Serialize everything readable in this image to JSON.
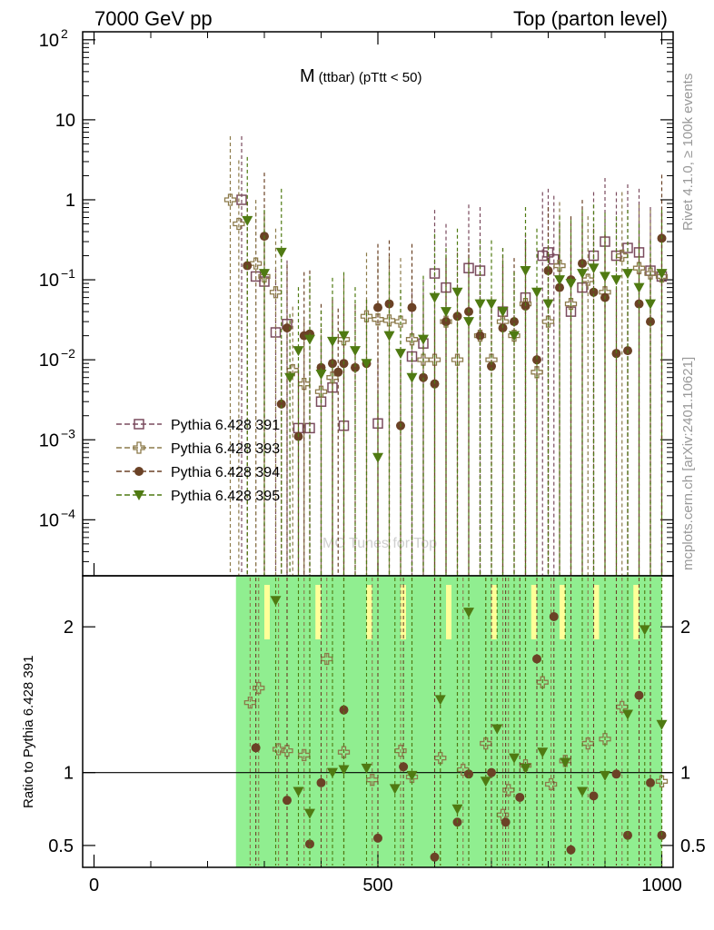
{
  "header": {
    "left_label": "7000 GeV pp",
    "right_label": "Top (parton level)"
  },
  "side": {
    "rivet_label": "Rivet 4.1.0, ≥ 100k events",
    "mcplots_label": "mcplots.cern.ch [arXiv:2401.10621]"
  },
  "watermark": "MC Tunes for Top",
  "colors": {
    "s391": "#7a4b5e",
    "s393": "#8c7a4a",
    "s394": "#6b4226",
    "s395": "#4f7a12",
    "band_green": "#90ee90",
    "band_yellow": "#ffff99"
  },
  "chart_data": {
    "type": "scatter",
    "title_main": "M",
    "title_sub": "(ttbar) (pTtt < 50)",
    "xlabel": "",
    "ylabel_ratio": "Ratio to Pythia 6.428 391",
    "xlim": [
      -20,
      1020
    ],
    "ylim_main_log10": [
      -4.7,
      2.1
    ],
    "ylim_ratio": [
      0.35,
      2.35
    ],
    "x_ticks": [
      0,
      500,
      1000
    ],
    "x_tick_labels": [
      "0",
      "500",
      "1000"
    ],
    "y_main_ticks": [
      {
        "exp": 2,
        "label": "10",
        "sup": "2"
      },
      {
        "exp": 1,
        "label": "10",
        "sup": ""
      },
      {
        "exp": 0,
        "label": "1",
        "sup": ""
      },
      {
        "exp": -1,
        "label": "10",
        "sup": "−1"
      },
      {
        "exp": -2,
        "label": "10",
        "sup": "−2"
      },
      {
        "exp": -3,
        "label": "10",
        "sup": "−3"
      },
      {
        "exp": -4,
        "label": "10",
        "sup": "−4"
      }
    ],
    "y_ratio_ticks": [
      {
        "v": 2,
        "label": "2"
      },
      {
        "v": 1,
        "label": "1"
      },
      {
        "v": 0.5,
        "label": "0.5"
      }
    ],
    "legend": [
      {
        "key": "s391",
        "label": "Pythia 6.428 391",
        "marker": "open-square"
      },
      {
        "key": "s393",
        "label": "Pythia 6.428 393",
        "marker": "open-cross"
      },
      {
        "key": "s394",
        "label": "Pythia 6.428 394",
        "marker": "circle"
      },
      {
        "key": "s395",
        "label": "Pythia 6.428 395",
        "marker": "triangle-down"
      }
    ],
    "series": [
      {
        "key": "s391",
        "x": [
          260,
          285,
          300,
          320,
          340,
          360,
          380,
          400,
          420,
          440,
          500,
          560,
          580,
          600,
          620,
          660,
          680,
          720,
          760,
          790,
          800,
          810,
          840,
          860,
          880,
          900,
          920,
          940,
          960,
          980,
          1000
        ],
        "y": [
          1.0,
          0.11,
          0.095,
          0.022,
          0.028,
          0.0014,
          0.0014,
          0.003,
          0.0045,
          0.0015,
          0.0016,
          0.011,
          0.016,
          0.12,
          0.08,
          0.14,
          0.13,
          0.04,
          0.06,
          0.2,
          0.22,
          0.18,
          0.04,
          0.08,
          0.2,
          0.3,
          0.2,
          0.25,
          0.22,
          0.13,
          0.11
        ]
      },
      {
        "key": "s393",
        "x": [
          240,
          255,
          285,
          300,
          320,
          350,
          370,
          400,
          420,
          440,
          480,
          500,
          520,
          540,
          560,
          580,
          600,
          620,
          640,
          680,
          700,
          720,
          740,
          760,
          780,
          800,
          820,
          840,
          870,
          900,
          930,
          960,
          980,
          1000
        ],
        "y": [
          1.0,
          0.5,
          0.16,
          0.11,
          0.07,
          0.0074,
          0.005,
          0.004,
          0.006,
          0.018,
          0.035,
          0.032,
          0.031,
          0.03,
          0.018,
          0.01,
          0.01,
          0.03,
          0.01,
          0.02,
          0.01,
          0.03,
          0.02,
          0.05,
          0.007,
          0.03,
          0.15,
          0.05,
          0.1,
          0.07,
          0.2,
          0.14,
          0.12,
          0.11
        ]
      },
      {
        "key": "s394",
        "x": [
          270,
          300,
          330,
          340,
          360,
          370,
          380,
          400,
          420,
          430,
          440,
          460,
          480,
          500,
          520,
          540,
          560,
          580,
          600,
          620,
          640,
          660,
          680,
          700,
          720,
          740,
          760,
          780,
          800,
          820,
          840,
          860,
          880,
          900,
          920,
          940,
          960,
          980,
          1000
        ],
        "y": [
          0.15,
          0.35,
          0.0028,
          0.025,
          0.0011,
          0.02,
          0.021,
          0.008,
          0.009,
          0.007,
          0.009,
          0.008,
          0.009,
          0.045,
          0.05,
          0.0015,
          0.045,
          0.006,
          0.005,
          0.03,
          0.035,
          0.04,
          0.02,
          0.0083,
          0.025,
          0.03,
          0.047,
          0.01,
          0.13,
          0.08,
          0.1,
          0.16,
          0.07,
          0.06,
          0.012,
          0.013,
          0.05,
          0.03,
          0.33
        ]
      },
      {
        "key": "s395",
        "x": [
          270,
          300,
          330,
          345,
          360,
          380,
          400,
          420,
          440,
          460,
          480,
          500,
          520,
          540,
          560,
          580,
          600,
          620,
          640,
          660,
          680,
          700,
          720,
          740,
          760,
          780,
          800,
          820,
          840,
          860,
          880,
          900,
          920,
          940,
          960,
          980,
          1000
        ],
        "y": [
          0.55,
          0.12,
          0.22,
          0.006,
          0.013,
          0.018,
          0.0066,
          0.017,
          0.02,
          0.013,
          0.009,
          0.0006,
          0.02,
          0.012,
          0.006,
          0.018,
          0.06,
          0.04,
          0.07,
          0.03,
          0.05,
          0.05,
          0.04,
          0.02,
          0.13,
          0.07,
          0.05,
          0.1,
          0.09,
          0.12,
          0.14,
          0.11,
          0.1,
          0.12,
          0.08,
          0.05,
          0.12
        ]
      }
    ],
    "ratio_series": [
      {
        "key": "s393",
        "x": [
          275,
          290,
          325,
          340,
          370,
          410,
          440,
          490,
          540,
          560,
          610,
          650,
          690,
          720,
          730,
          760,
          790,
          805,
          830,
          870,
          900,
          930,
          1000
        ],
        "y": [
          1.48,
          1.58,
          1.16,
          1.15,
          1.12,
          1.78,
          1.14,
          0.95,
          1.15,
          0.97,
          1.1,
          1.02,
          1.2,
          0.71,
          0.88,
          1.05,
          1.62,
          0.92,
          1.08,
          1.2,
          1.23,
          1.45,
          0.94
        ]
      },
      {
        "key": "s394",
        "x": [
          285,
          340,
          380,
          400,
          440,
          500,
          545,
          600,
          640,
          660,
          700,
          725,
          750,
          780,
          810,
          840,
          880,
          920,
          940,
          960,
          980,
          1000
        ],
        "y": [
          1.17,
          0.81,
          0.51,
          0.93,
          1.43,
          0.55,
          1.04,
          0.42,
          0.66,
          0.99,
          1.0,
          0.66,
          0.83,
          1.78,
          2.07,
          0.47,
          0.84,
          0.99,
          0.57,
          1.53,
          0.93,
          0.57
        ]
      },
      {
        "key": "s395",
        "x": [
          320,
          360,
          380,
          420,
          440,
          480,
          530,
          560,
          610,
          640,
          660,
          690,
          710,
          740,
          760,
          790,
          830,
          860,
          900,
          940,
          970,
          1000
        ],
        "y": [
          2.18,
          0.87,
          0.72,
          1.0,
          1.02,
          1.03,
          0.89,
          0.98,
          1.5,
          0.75,
          2.1,
          0.94,
          1.3,
          1.1,
          1.03,
          1.14,
          1.07,
          0.87,
          0.98,
          1.4,
          1.98,
          1.33
        ]
      }
    ],
    "ratio_bands": [
      {
        "x0": 250,
        "x1": 1000,
        "color": "band_green"
      }
    ]
  }
}
